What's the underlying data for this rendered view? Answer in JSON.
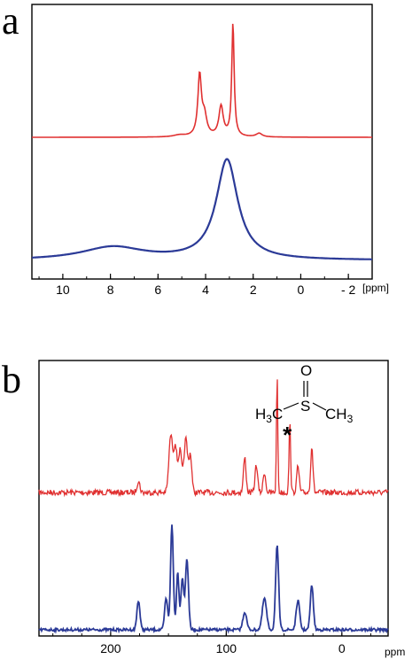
{
  "colors": {
    "red": "#e03030",
    "blue": "#2b3a97"
  },
  "chart_data": [
    {
      "type": "line",
      "panel_label": "a",
      "x_unit": "[ppm]",
      "x_reversed": true,
      "xlim": [
        11.3,
        -3.0
      ],
      "x_ticks": [
        10,
        8,
        6,
        4,
        2,
        0,
        -2
      ],
      "x_tick_labels": [
        "10",
        "8",
        "6",
        "4",
        "2",
        "0",
        "- 2"
      ],
      "series": [
        {
          "color": "red",
          "baseline": 0.0,
          "peaks": [
            [
              4.25,
              1.0,
              0.09
            ],
            [
              4.05,
              0.32,
              0.12
            ],
            [
              3.35,
              0.5,
              0.11
            ],
            [
              2.85,
              1.88,
              0.06
            ],
            [
              1.75,
              0.06,
              0.15
            ],
            [
              5.1,
              0.03,
              0.3
            ]
          ]
        },
        {
          "color": "blue",
          "baseline": 0.0,
          "peaks": [
            [
              3.1,
              1.0,
              0.55
            ],
            [
              7.9,
              0.13,
              1.6
            ]
          ]
        }
      ]
    },
    {
      "type": "line",
      "panel_label": "b",
      "x_unit": "ppm",
      "x_reversed": true,
      "xlim": [
        262,
        -40
      ],
      "x_ticks": [
        200,
        100,
        0
      ],
      "x_tick_labels": [
        "200",
        "100",
        "0"
      ],
      "annotation": {
        "molecule": {
          "top": "O",
          "s": "S",
          "left_main": "H",
          "left_sub": "3",
          "left_c": "C",
          "right_c": "CH",
          "right_sub": "3"
        },
        "marker": "*",
        "marker_at_ppm": 45
      },
      "series": [
        {
          "color": "red",
          "peaks": [
            [
              176,
              0.12,
              1.3
            ],
            [
              148,
              0.62,
              1.6
            ],
            [
              144,
              0.5,
              1.4
            ],
            [
              140,
              0.45,
              1.4
            ],
            [
              135,
              0.58,
              1.6
            ],
            [
              131,
              0.4,
              1.2
            ],
            [
              84,
              0.38,
              1.1
            ],
            [
              74,
              0.3,
              1.1
            ],
            [
              67,
              0.22,
              1.1
            ],
            [
              56,
              1.25,
              0.6
            ],
            [
              45,
              0.75,
              0.7
            ],
            [
              38,
              0.28,
              1.1
            ],
            [
              26,
              0.5,
              1.0
            ]
          ]
        },
        {
          "color": "blue",
          "peaks": [
            [
              176,
              0.28,
              1.3
            ],
            [
              152,
              0.3,
              1.3
            ],
            [
              147,
              1.0,
              1.2
            ],
            [
              142,
              0.55,
              1.1
            ],
            [
              138,
              0.5,
              1.2
            ],
            [
              134,
              0.68,
              1.3
            ],
            [
              84,
              0.17,
              1.6
            ],
            [
              67,
              0.3,
              1.8
            ],
            [
              56,
              0.8,
              1.3
            ],
            [
              38,
              0.28,
              1.5
            ],
            [
              26,
              0.43,
              1.3
            ]
          ]
        }
      ]
    }
  ]
}
